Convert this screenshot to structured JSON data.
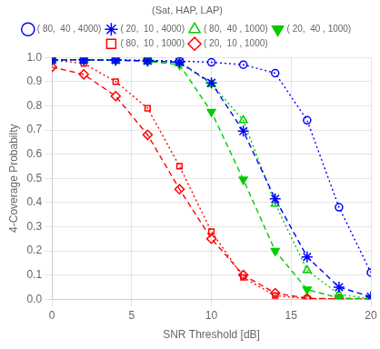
{
  "chart_data": {
    "type": "line",
    "xlabel": "SNR Threshold [dB]",
    "ylabel": "4-Coverage Probabilty",
    "x": [
      0,
      2,
      4,
      6,
      8,
      10,
      12,
      14,
      16,
      18,
      20
    ],
    "xlim": [
      0,
      20
    ],
    "ylim": [
      0,
      1.0
    ],
    "xticks": [
      0,
      5,
      10,
      15,
      20
    ],
    "yticks": [
      {
        "value": 0,
        "label": "0.0"
      },
      0.1,
      0.2,
      0.3,
      0.4,
      0.5,
      0.6,
      0.7,
      0.8,
      0.9,
      {
        "value": 1.0,
        "label": "1.0"
      }
    ],
    "grid": true,
    "legend": "top",
    "legend_title": "(Sat, HAP, LAP)",
    "series": [
      {
        "name": "( 80,  40 , 4000)",
        "color": "#0000FF",
        "line_style": "dotted",
        "marker": "circle_open",
        "values": [
          0.99,
          0.99,
          0.99,
          0.988,
          0.985,
          0.98,
          0.97,
          0.935,
          0.74,
          0.38,
          0.11
        ]
      },
      {
        "name": "( 20,  10 , 4000)",
        "color": "#0000FF",
        "line_style": "dashed",
        "marker": "star",
        "values": [
          0.99,
          0.99,
          0.989,
          0.986,
          0.98,
          0.895,
          0.695,
          0.415,
          0.175,
          0.05,
          0.01
        ]
      },
      {
        "name": "( 80,  40 , 1000)",
        "color": "#00CC00",
        "line_style": "dotted",
        "marker": "triangle_up_open",
        "values": [
          0.99,
          0.99,
          0.989,
          0.986,
          0.978,
          0.89,
          0.74,
          0.395,
          0.12,
          0.02,
          0.002
        ]
      },
      {
        "name": "( 20,  40 , 1000)",
        "color": "#00CC00",
        "line_style": "dashed",
        "marker": "triangle_down",
        "values": [
          0.99,
          0.99,
          0.988,
          0.984,
          0.97,
          0.775,
          0.495,
          0.2,
          0.04,
          0.005,
          0.001
        ]
      },
      {
        "name": "( 80,  10 , 1000)",
        "color": "#FF0000",
        "line_style": "dotted",
        "marker": "square_open",
        "values": [
          0.99,
          0.975,
          0.9,
          0.79,
          0.55,
          0.28,
          0.09,
          0.015,
          0.002,
          0.001,
          0.0005
        ]
      },
      {
        "name": "( 20,  10 , 1000)",
        "color": "#FF0000",
        "line_style": "dashed",
        "marker": "diamond_open",
        "values": [
          0.96,
          0.93,
          0.84,
          0.68,
          0.455,
          0.25,
          0.1,
          0.025,
          0.004,
          0.001,
          0.0002
        ]
      }
    ]
  }
}
